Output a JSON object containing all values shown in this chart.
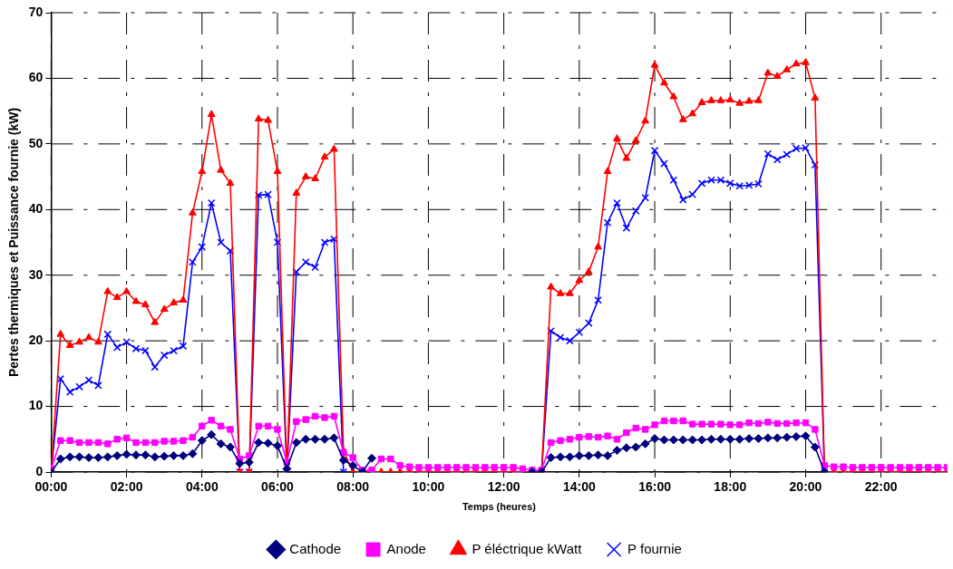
{
  "chart_data": {
    "type": "line",
    "xlabel": "Temps (heures)",
    "ylabel": "Pertes thermiques et Puissance fournie (kW)",
    "x": [
      0,
      0.25,
      0.5,
      0.75,
      1,
      1.25,
      1.5,
      1.75,
      2,
      2.25,
      2.5,
      2.75,
      3,
      3.25,
      3.5,
      3.75,
      4,
      4.25,
      4.5,
      4.75,
      5,
      5.25,
      5.5,
      5.75,
      6,
      6.25,
      6.5,
      6.75,
      7,
      7.25,
      7.5,
      7.75,
      8,
      8.25,
      8.5,
      8.75,
      9,
      9.25,
      9.5,
      9.75,
      10,
      10.25,
      10.5,
      10.75,
      11,
      11.25,
      11.5,
      11.75,
      12,
      12.25,
      12.5,
      12.75,
      13,
      13.25,
      13.5,
      13.75,
      14,
      14.25,
      14.5,
      14.75,
      15,
      15.25,
      15.5,
      15.75,
      16,
      16.25,
      16.5,
      16.75,
      17,
      17.25,
      17.5,
      17.75,
      18,
      18.25,
      18.5,
      18.75,
      19,
      19.25,
      19.5,
      19.75,
      20,
      20.25,
      20.5,
      20.75,
      21,
      21.25,
      21.5,
      21.75,
      22,
      22.25,
      22.5,
      22.75,
      23,
      23.25,
      23.5,
      23.75
    ],
    "xlim": [
      0,
      23.75
    ],
    "xticks": [
      {
        "value": 0,
        "label": "00:00"
      },
      {
        "value": 2,
        "label": "02:00"
      },
      {
        "value": 4,
        "label": "04:00"
      },
      {
        "value": 6,
        "label": "06:00"
      },
      {
        "value": 8,
        "label": "08:00"
      },
      {
        "value": 10,
        "label": "10:00"
      },
      {
        "value": 12,
        "label": "12:00"
      },
      {
        "value": 14,
        "label": "14:00"
      },
      {
        "value": 16,
        "label": "16:00"
      },
      {
        "value": 18,
        "label": "18:00"
      },
      {
        "value": 20,
        "label": "20:00"
      },
      {
        "value": 22,
        "label": "22:00"
      }
    ],
    "ylim": [
      0,
      70
    ],
    "yticks": [
      0,
      10,
      20,
      30,
      40,
      50,
      60,
      70
    ],
    "grid": true,
    "legend": "bottom",
    "line_style": "solid",
    "series": [
      {
        "name": "Cathode",
        "color": "#000080",
        "marker": "diamond",
        "values": [
          0,
          2,
          2.3,
          2.3,
          2.2,
          2.2,
          2.3,
          2.5,
          2.7,
          2.6,
          2.6,
          2.3,
          2.4,
          2.5,
          2.5,
          2.8,
          4.8,
          5.7,
          4.3,
          3.8,
          1.3,
          1.5,
          4.5,
          4.4,
          4,
          0.5,
          4.5,
          5,
          5,
          5,
          5.2,
          1.8,
          1,
          0,
          2.1,
          null,
          null,
          null,
          null,
          null,
          null,
          null,
          null,
          null,
          null,
          null,
          null,
          null,
          null,
          null,
          null,
          0,
          0,
          2.2,
          2.3,
          2.3,
          2.5,
          2.5,
          2.6,
          2.5,
          3.3,
          3.7,
          3.8,
          4.3,
          5.1,
          4.9,
          4.9,
          4.9,
          4.9,
          4.9,
          5,
          5,
          5,
          5,
          5.1,
          5.1,
          5.2,
          5.2,
          5.3,
          5.4,
          5.5,
          3.8,
          0,
          null,
          null,
          null,
          null,
          null,
          null,
          null,
          null,
          null,
          null,
          null,
          null,
          null
        ]
      },
      {
        "name": "Anode",
        "color": "#ff00ff",
        "marker": "square",
        "values": [
          0.5,
          4.8,
          4.8,
          4.5,
          4.5,
          4.5,
          4.3,
          5,
          5.2,
          4.5,
          4.5,
          4.5,
          4.7,
          4.7,
          4.8,
          5.3,
          7,
          7.9,
          7,
          6.5,
          2,
          2.5,
          7,
          7,
          6.5,
          1.5,
          7.7,
          8,
          8.5,
          8.3,
          8.5,
          3,
          2.2,
          0.3,
          0.3,
          2,
          2,
          1,
          0.8,
          0.7,
          0.7,
          0.7,
          0.7,
          0.7,
          0.7,
          0.7,
          0.7,
          0.7,
          0.7,
          0.7,
          0.5,
          0.3,
          0.3,
          4.5,
          4.8,
          5,
          5.3,
          5.4,
          5.3,
          5.5,
          5,
          6,
          6.7,
          6.5,
          7.2,
          7.8,
          7.8,
          7.8,
          7.3,
          7.3,
          7.3,
          7.3,
          7.2,
          7.2,
          7.5,
          7.4,
          7.6,
          7.4,
          7.4,
          7.5,
          7.5,
          6.5,
          1,
          0.8,
          0.8,
          0.7,
          0.7,
          0.7,
          0.7,
          0.7,
          0.7,
          0.7,
          0.7,
          0.7,
          0.7,
          0.7
        ]
      },
      {
        "name": "P éléctrique kWatt",
        "color": "#ff0000",
        "marker": "triangle",
        "values": [
          0,
          21,
          19.3,
          19.8,
          20.5,
          19.8,
          27.5,
          26.6,
          27.5,
          26,
          25.5,
          22.8,
          24.8,
          25.8,
          26.2,
          39.5,
          45.8,
          54.5,
          46,
          44,
          0,
          0,
          53.8,
          53.6,
          45.8,
          0,
          42.5,
          45,
          44.7,
          48,
          49.2,
          3.2,
          0,
          0,
          0,
          0,
          0,
          0,
          0,
          0,
          0,
          0,
          0,
          0,
          0,
          0,
          0,
          0,
          0,
          0,
          0,
          0,
          0,
          28.2,
          27.2,
          27.2,
          29.2,
          30.5,
          34.3,
          45.8,
          50.8,
          47.8,
          50.5,
          53.5,
          62,
          59.3,
          57.2,
          53.7,
          54.6,
          56.3,
          56.6,
          56.6,
          56.7,
          56.2,
          56.5,
          56.6,
          60.8,
          60.3,
          61.3,
          62.2,
          62.4,
          57,
          0,
          0,
          0,
          0,
          0,
          0,
          0,
          0,
          0,
          0,
          0,
          0,
          0,
          0
        ]
      },
      {
        "name": "P fournie",
        "color": "#0000ff",
        "marker": "cross",
        "values": [
          0,
          14.2,
          12.2,
          13,
          14,
          13.2,
          21,
          19,
          19.8,
          18.8,
          18.5,
          16,
          17.8,
          18.5,
          19.2,
          32,
          34.3,
          41,
          35,
          33.7,
          0,
          0,
          42.2,
          42.3,
          35,
          0,
          30.5,
          32,
          31.2,
          35,
          35.5,
          0,
          null,
          null,
          null,
          null,
          null,
          null,
          null,
          null,
          null,
          null,
          null,
          null,
          null,
          null,
          null,
          null,
          null,
          null,
          null,
          0,
          0,
          21.5,
          20.5,
          20,
          21.3,
          22.7,
          26.2,
          38,
          41,
          37.2,
          39.8,
          41.8,
          49,
          47,
          44.5,
          41.5,
          42.3,
          44,
          44.5,
          44.5,
          44,
          43.6,
          43.7,
          43.9,
          48.5,
          47.6,
          48.4,
          49.3,
          49.4,
          46.8,
          0,
          null,
          null,
          null,
          null,
          null,
          null,
          null,
          null,
          null,
          null,
          null,
          null,
          null
        ]
      }
    ]
  }
}
